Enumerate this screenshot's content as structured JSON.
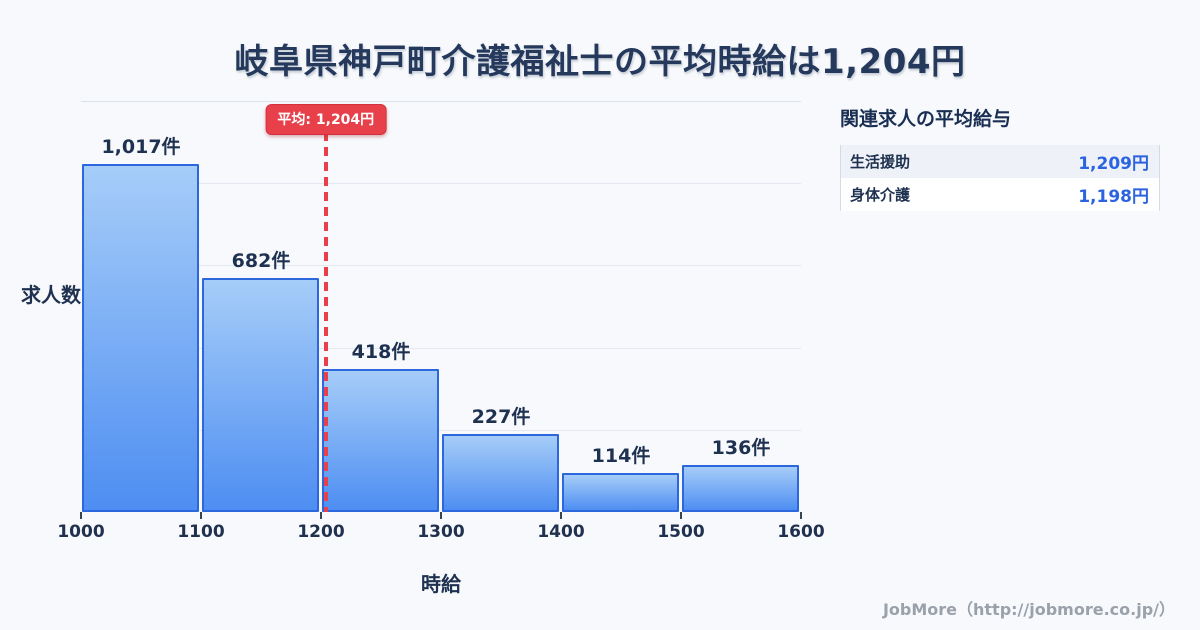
{
  "title": "岐阜県神戸町介護福祉士の平均時給は1,204円",
  "chart_data": {
    "type": "bar",
    "title": "岐阜県神戸町介護福祉士の平均時給は1,204円",
    "xlabel": "時給",
    "ylabel": "求人数",
    "categories": [
      "1000-1100",
      "1100-1200",
      "1200-1300",
      "1300-1400",
      "1400-1500",
      "1500-1600"
    ],
    "values": [
      1017,
      682,
      418,
      227,
      114,
      136
    ],
    "bar_labels": [
      "1,017件",
      "682件",
      "418件",
      "227件",
      "114件",
      "136件"
    ],
    "x_ticks": [
      1000,
      1100,
      1200,
      1300,
      1400,
      1500,
      1600
    ],
    "xlim": [
      1000,
      1600
    ],
    "ylim": [
      0,
      1200
    ],
    "gridline_count": 5,
    "grid": "horizontal",
    "legend_position": "none",
    "average": {
      "value": 1204,
      "label": "平均: 1,204円"
    },
    "colors": {
      "bar_fill_top": "#a6cdf8",
      "bar_fill_bottom": "#4e8ef2",
      "bar_border": "#2c67dd",
      "average_line": "#e8404b",
      "text": "#1e3150",
      "background": "#f7f9fc"
    }
  },
  "side_panel": {
    "title": "関連求人の平均給与",
    "rows": [
      {
        "label": "生活援助",
        "value": "1,209円"
      },
      {
        "label": "身体介護",
        "value": "1,198円"
      }
    ]
  },
  "footer": {
    "credit": "JobMore（http://jobmore.co.jp/）"
  }
}
